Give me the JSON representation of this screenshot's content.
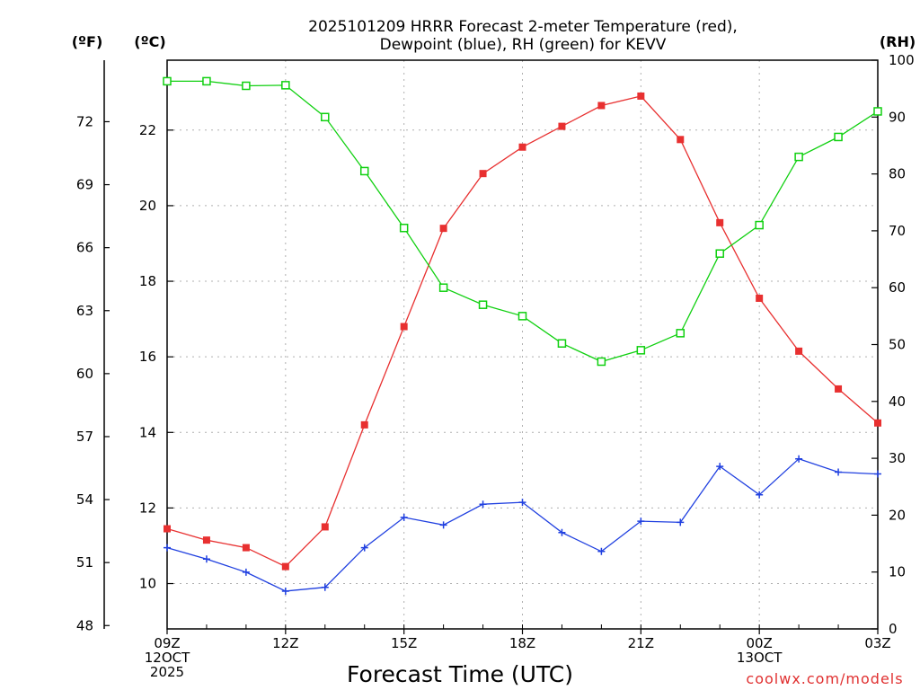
{
  "chart_data": {
    "type": "line",
    "title": [
      "2025101209 HRRR Forecast 2-meter Temperature (red),",
      "Dewpoint (blue), RH (green) for KEVV"
    ],
    "xlabel": "Forecast Time (UTC)",
    "credit": "coolwx.com/models",
    "units": {
      "fahrenheit": "(ºF)",
      "celsius": "(ºC)",
      "rh": "(RH)"
    },
    "x_tick_labels": [
      {
        "index": 0,
        "lines": [
          "09Z",
          "12OCT",
          "2025"
        ]
      },
      {
        "index": 3,
        "lines": [
          "12Z"
        ]
      },
      {
        "index": 6,
        "lines": [
          "15Z"
        ]
      },
      {
        "index": 9,
        "lines": [
          "18Z"
        ]
      },
      {
        "index": 12,
        "lines": [
          "21Z"
        ]
      },
      {
        "index": 15,
        "lines": [
          "00Z",
          "13OCT"
        ]
      },
      {
        "index": 18,
        "lines": [
          "03Z"
        ]
      }
    ],
    "x_count": 19,
    "celsius_axis": {
      "range": [
        8.8,
        23.85
      ],
      "ticks": [
        10,
        12,
        14,
        16,
        18,
        20,
        22
      ]
    },
    "fahrenheit_axis": {
      "range": [
        47.84,
        74.93
      ],
      "ticks": [
        48,
        51,
        54,
        57,
        60,
        63,
        66,
        69,
        72
      ]
    },
    "rh_axis": {
      "range": [
        0,
        100
      ],
      "ticks": [
        0,
        10,
        20,
        30,
        40,
        50,
        60,
        70,
        80,
        90,
        100
      ]
    },
    "colors": {
      "temperature": "#e83030",
      "dewpoint": "#2040e0",
      "rh": "#10d010"
    },
    "series": [
      {
        "name": "Temperature",
        "axis": "celsius",
        "marker": "filled-square",
        "values": [
          11.45,
          11.15,
          10.95,
          10.45,
          11.5,
          14.2,
          16.8,
          19.4,
          20.85,
          21.55,
          22.1,
          22.65,
          22.9,
          21.75,
          19.55,
          17.55,
          16.15,
          15.15,
          14.25
        ]
      },
      {
        "name": "Dewpoint",
        "axis": "celsius",
        "marker": "plus",
        "values": [
          10.95,
          10.65,
          10.3,
          9.8,
          9.9,
          10.95,
          11.75,
          11.55,
          12.1,
          12.15,
          11.35,
          10.85,
          11.65,
          11.62,
          13.1,
          12.35,
          13.3,
          12.95,
          12.9
        ]
      },
      {
        "name": "RH",
        "axis": "rh",
        "marker": "open-square",
        "values": [
          96.3,
          96.3,
          95.5,
          95.6,
          90.0,
          80.5,
          70.5,
          60.0,
          57.0,
          55.0,
          50.2,
          47.0,
          49.0,
          52.0,
          66.0,
          71.0,
          83.0,
          86.5,
          91.0
        ]
      }
    ]
  }
}
